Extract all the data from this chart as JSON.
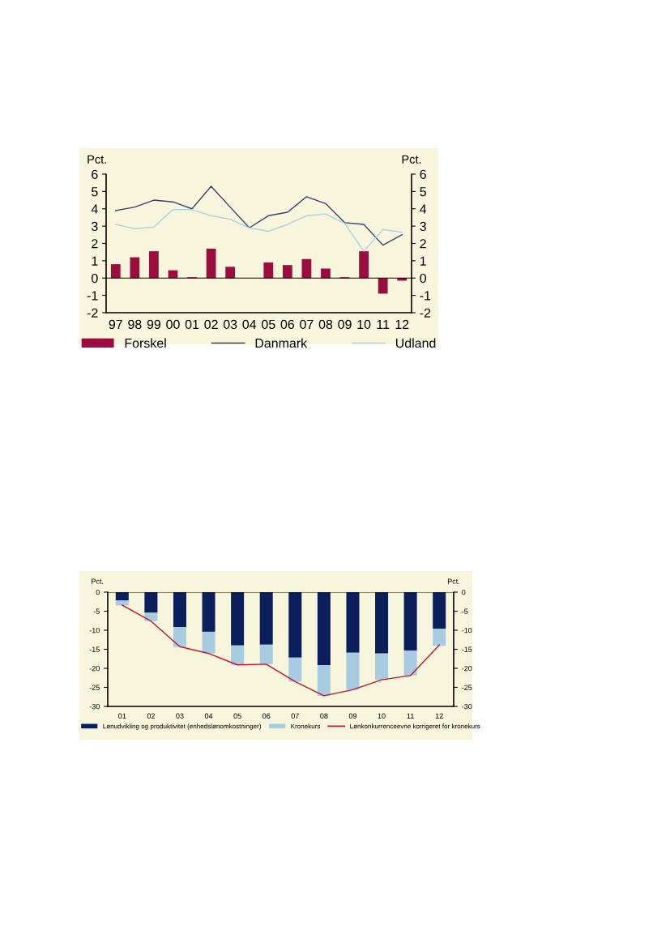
{
  "chart_data": [
    {
      "type": "bar",
      "ylabel": "Pct.",
      "y2label": "Pct.",
      "categories": [
        "97",
        "98",
        "99",
        "00",
        "01",
        "02",
        "03",
        "04",
        "05",
        "06",
        "07",
        "08",
        "09",
        "10",
        "11",
        "12"
      ],
      "series": [
        {
          "name": "Forskel",
          "color": "#9b0d3f",
          "values": [
            0.8,
            1.2,
            1.55,
            0.45,
            0.05,
            1.7,
            0.65,
            0,
            0.9,
            0.75,
            1.1,
            0.55,
            0.05,
            1.55,
            -0.9,
            -0.15
          ]
        },
        {
          "name": "Danmark",
          "type": "line",
          "color": "#3a3f6e",
          "values": [
            3.9,
            4.1,
            4.5,
            4.4,
            4.0,
            5.3,
            4.1,
            2.9,
            3.6,
            3.8,
            4.7,
            4.3,
            3.2,
            3.1,
            1.9,
            2.5
          ]
        },
        {
          "name": "Udland",
          "type": "line",
          "color": "#a9d3e0",
          "values": [
            3.1,
            2.85,
            2.95,
            3.95,
            3.95,
            3.6,
            3.4,
            2.9,
            2.7,
            3.1,
            3.6,
            3.7,
            3.15,
            1.55,
            2.8,
            2.65
          ]
        }
      ],
      "ylim": [
        -2,
        6
      ],
      "yticks": [
        -2,
        -1,
        0,
        1,
        2,
        3,
        4,
        5,
        6
      ],
      "y2lim": [
        -2,
        6
      ],
      "y2ticks": [
        -2,
        -1,
        0,
        1,
        2,
        3,
        4,
        5,
        6
      ],
      "ref_lines": [
        {
          "axis": "y",
          "value": 0,
          "color": "#000000"
        }
      ],
      "legend": "bottom"
    },
    {
      "type": "bar",
      "stacked": true,
      "ylabel": "Pct.",
      "y2label": "Pct.",
      "categories": [
        "01",
        "02",
        "03",
        "04",
        "05",
        "06",
        "07",
        "08",
        "09",
        "10",
        "11",
        "12"
      ],
      "series": [
        {
          "name": "Lønudvikling og produktivitet (enhedslønomkostninger)",
          "color": "#0b1f5c",
          "values": [
            -2.2,
            -5.4,
            -9.2,
            -10.4,
            -14.0,
            -13.8,
            -17.2,
            -19.2,
            -15.9,
            -16.1,
            -15.3,
            -9.6
          ]
        },
        {
          "name": "Kronekurs",
          "color": "#a7cbe0",
          "values": [
            -1.3,
            -2.2,
            -5.2,
            -5.7,
            -5.1,
            -5.1,
            -6.3,
            -8.0,
            -9.7,
            -6.9,
            -6.6,
            -4.5
          ]
        },
        {
          "name": "Lønkonkurrenceevne korrigeret for kronekurs",
          "type": "line",
          "color": "#c8102e",
          "values": [
            -3.4,
            -7.6,
            -14.3,
            -16.1,
            -19.1,
            -18.9,
            -23.5,
            -27.2,
            -25.6,
            -23.0,
            -21.9,
            -13.9
          ]
        }
      ],
      "ylim": [
        -30,
        0
      ],
      "yticks": [
        -30,
        -25,
        -20,
        -15,
        -10,
        -5,
        0
      ],
      "y2lim": [
        -30,
        0
      ],
      "y2ticks": [
        -30,
        -25,
        -20,
        -15,
        -10,
        -5,
        0
      ],
      "ref_lines": [
        {
          "axis": "y",
          "value": 0,
          "color": "#000000"
        }
      ],
      "legend": "bottom"
    }
  ]
}
